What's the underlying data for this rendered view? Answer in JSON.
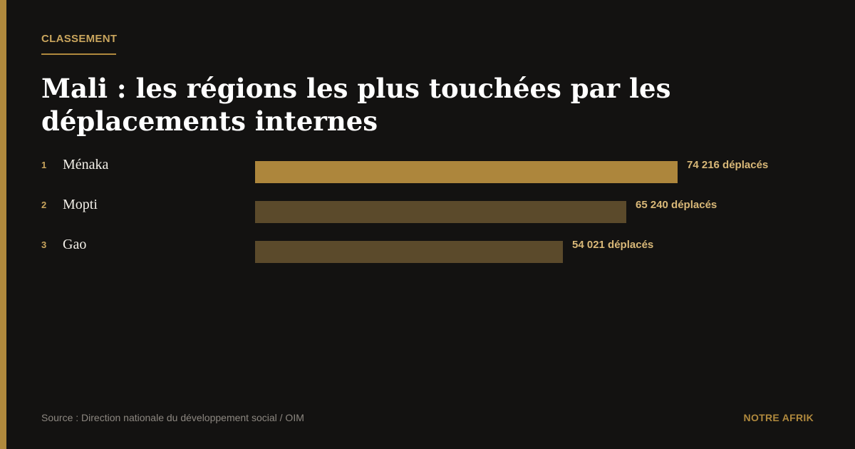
{
  "kicker": "CLASSEMENT",
  "title": "Mali : les régions les plus touchées par les déplacements internes",
  "colors": {
    "accent": "#b0893d",
    "bar_highlight": "#ad863c",
    "bar_muted": "#5b4a2b"
  },
  "chart_data": {
    "type": "bar",
    "orientation": "horizontal",
    "categories": [
      "Ménaka",
      "Mopti",
      "Gao"
    ],
    "ranks": [
      "1",
      "2",
      "3"
    ],
    "values": [
      74216,
      65240,
      54021
    ],
    "value_labels": [
      "74 216 déplacés",
      "65 240 déplacés",
      "54 021 déplacés"
    ],
    "xlim": [
      0,
      74216
    ],
    "grid": false
  },
  "footer": {
    "source": "Source : Direction nationale du développement social / OIM",
    "brand": "NOTRE AFRIK"
  }
}
